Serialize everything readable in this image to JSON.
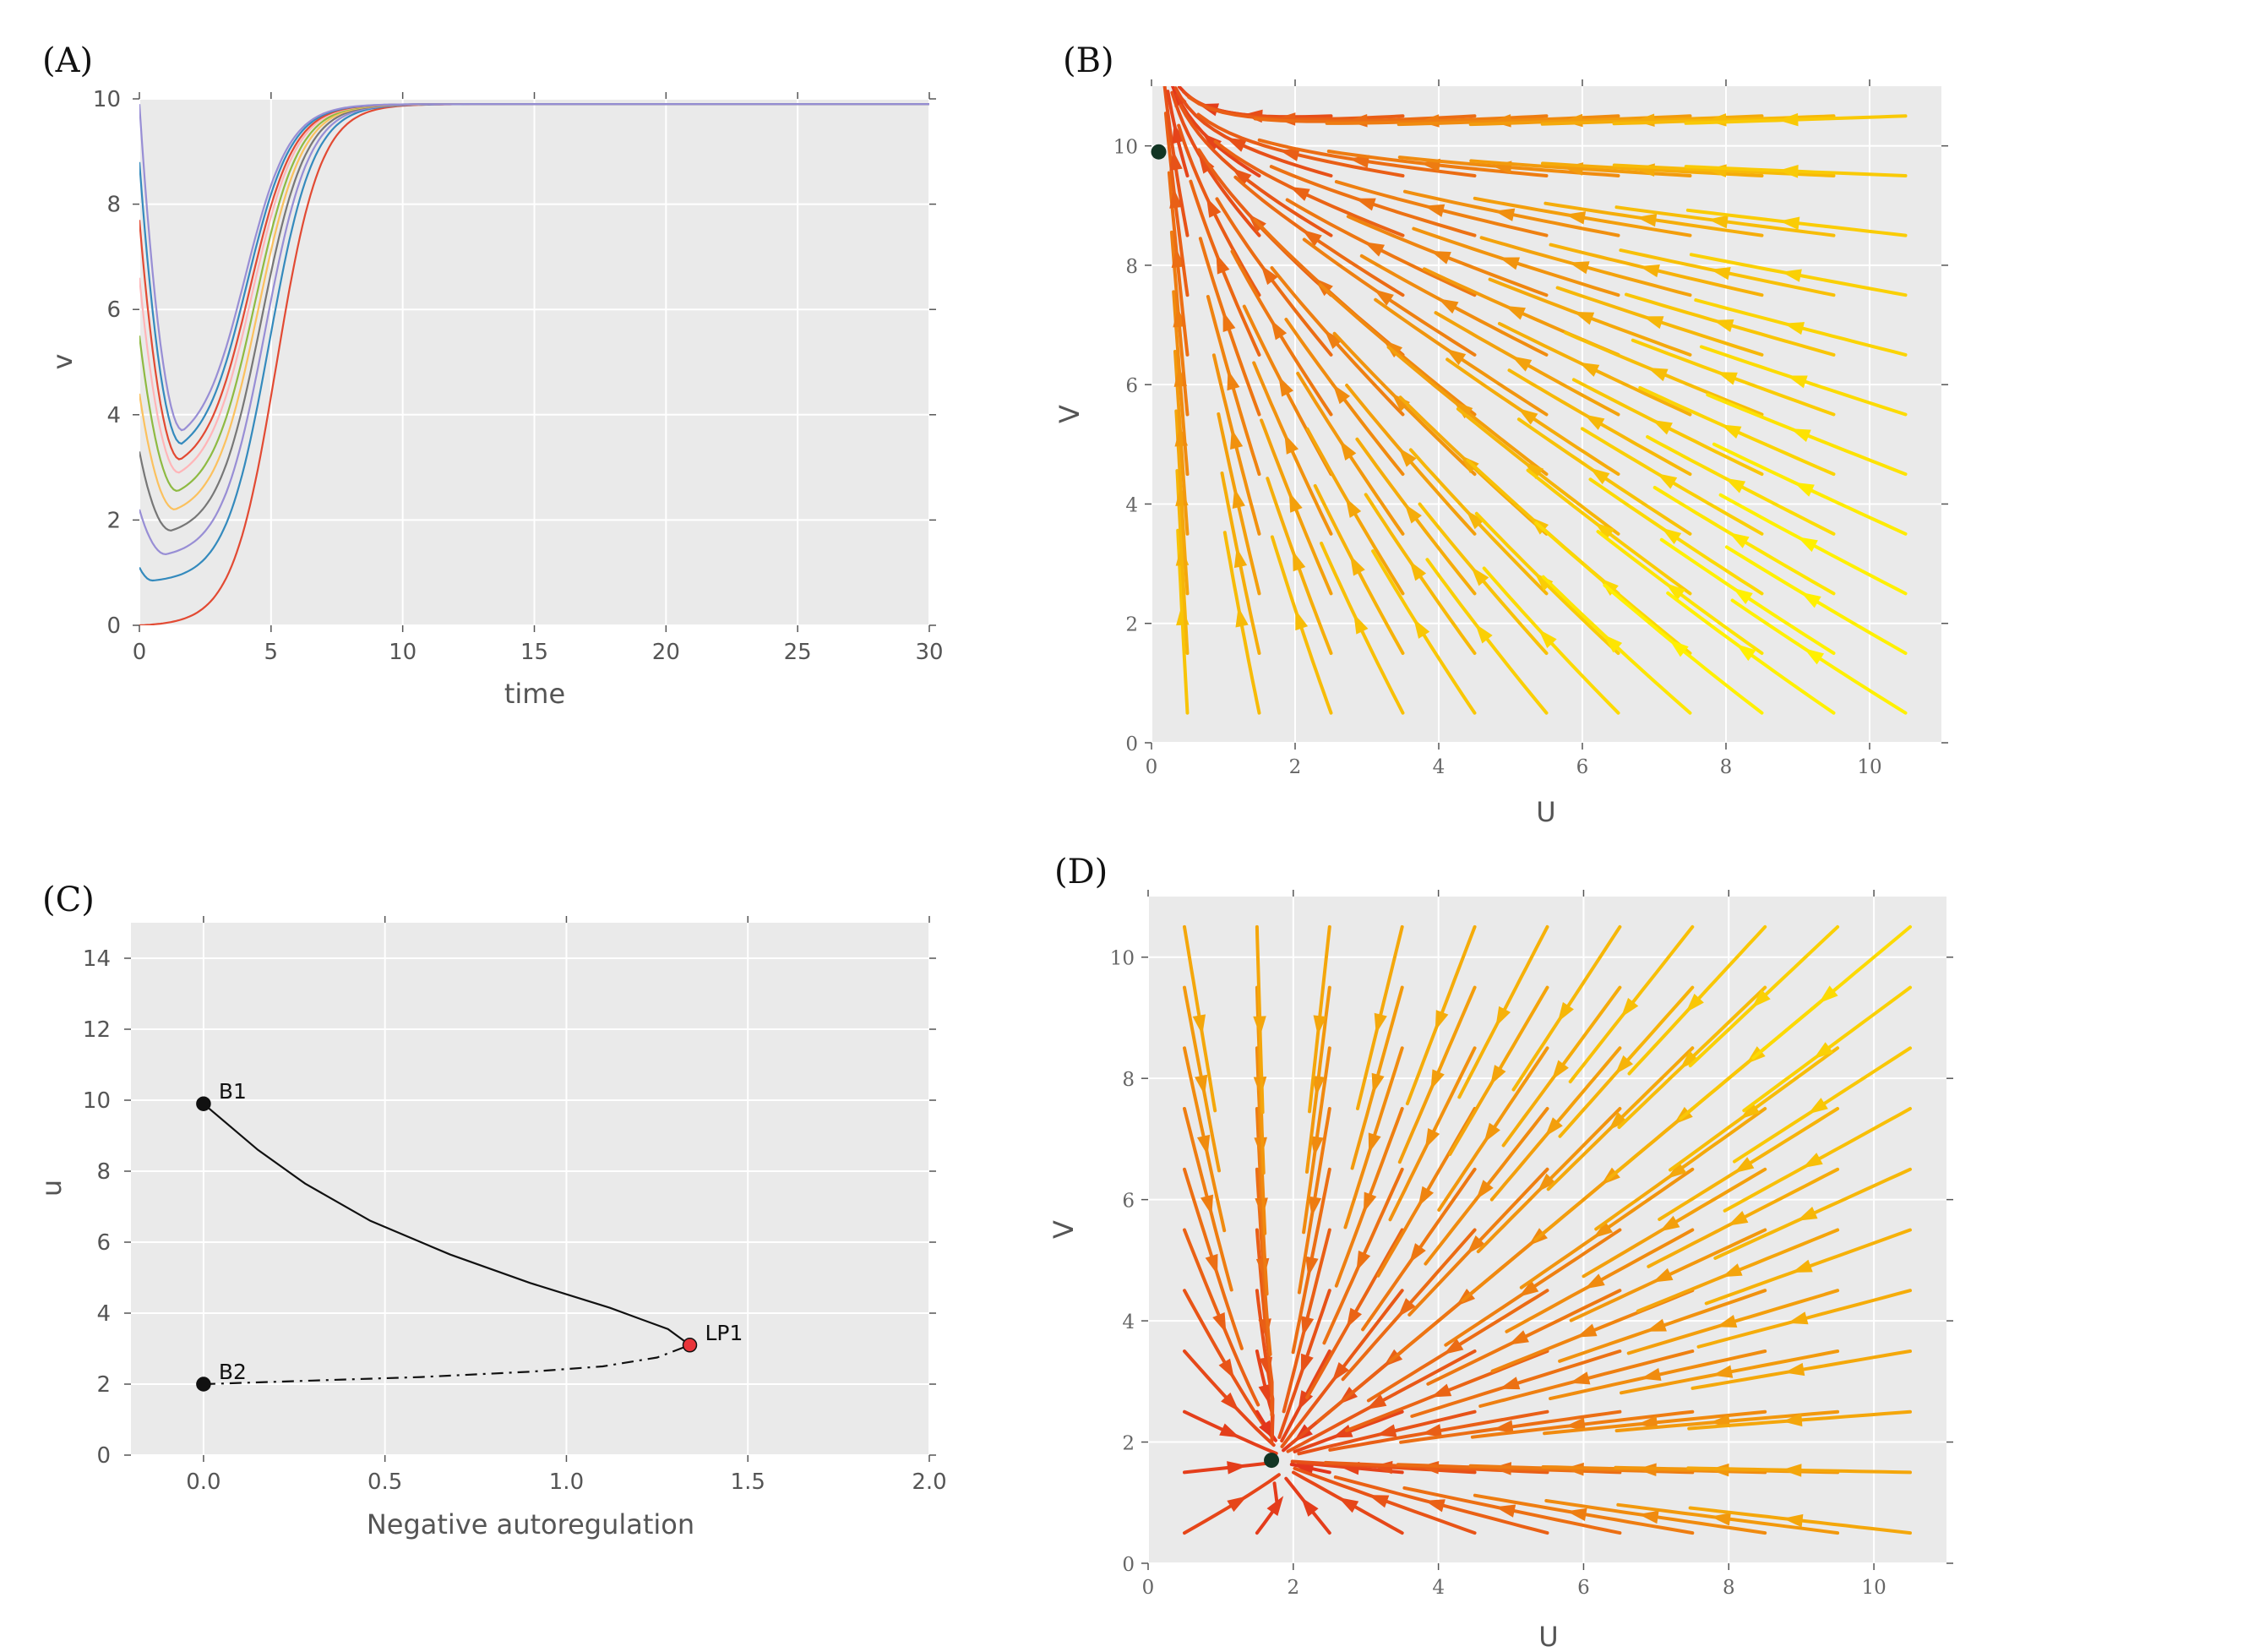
{
  "chart_data": [
    {
      "panel": "(A)",
      "type": "line",
      "xlabel": "time",
      "ylabel": "v",
      "xlim": [
        0,
        30
      ],
      "ylim": [
        0,
        10
      ],
      "xticks": [
        "0",
        "5",
        "10",
        "15",
        "20",
        "25",
        "30"
      ],
      "yticks": [
        "0",
        "2",
        "4",
        "6",
        "8",
        "10"
      ],
      "grid": true,
      "steady_state": 9.9,
      "series": [
        {
          "v0": 0.0,
          "min_v": 0.0,
          "t_min": 0.0,
          "color": "#e24a33"
        },
        {
          "v0": 1.1,
          "min_v": 0.85,
          "t_min": 0.5,
          "color": "#348abd"
        },
        {
          "v0": 2.2,
          "min_v": 1.35,
          "t_min": 1.0,
          "color": "#988ed5"
        },
        {
          "v0": 3.3,
          "min_v": 1.8,
          "t_min": 1.2,
          "color": "#777777"
        },
        {
          "v0": 4.4,
          "min_v": 2.2,
          "t_min": 1.35,
          "color": "#fbc15e"
        },
        {
          "v0": 5.5,
          "min_v": 2.55,
          "t_min": 1.45,
          "color": "#8eba42"
        },
        {
          "v0": 6.6,
          "min_v": 2.9,
          "t_min": 1.5,
          "color": "#ffb5b8"
        },
        {
          "v0": 7.7,
          "min_v": 3.15,
          "t_min": 1.55,
          "color": "#e24a33"
        },
        {
          "v0": 8.8,
          "min_v": 3.45,
          "t_min": 1.6,
          "color": "#348abd"
        },
        {
          "v0": 9.9,
          "min_v": 3.7,
          "t_min": 1.65,
          "color": "#988ed5"
        }
      ]
    },
    {
      "panel": "(B)",
      "type": "streamplot",
      "xlabel": "U",
      "ylabel": "V",
      "xlim": [
        0,
        11
      ],
      "ylim": [
        0,
        11
      ],
      "xticks": [
        "0",
        "2",
        "4",
        "6",
        "8",
        "10"
      ],
      "yticks": [
        "0",
        "2",
        "4",
        "6",
        "8",
        "10"
      ],
      "stable_point": [
        0.1,
        9.9
      ],
      "colormap": "autumn"
    },
    {
      "panel": "(C)",
      "type": "bifurcation",
      "xlabel": "Negative autoregulation",
      "ylabel": "u",
      "xlim": [
        -0.2,
        2.0
      ],
      "ylim": [
        0,
        15
      ],
      "xticks": [
        "0.0",
        "0.5",
        "1.0",
        "1.5",
        "2.0"
      ],
      "yticks": [
        "0",
        "2",
        "4",
        "6",
        "8",
        "10",
        "12",
        "14"
      ],
      "stable_branch": [
        [
          0,
          9.9
        ],
        [
          0.15,
          8.6
        ],
        [
          0.28,
          7.65
        ],
        [
          0.46,
          6.6
        ],
        [
          0.68,
          5.65
        ],
        [
          0.9,
          4.85
        ],
        [
          1.12,
          4.15
        ],
        [
          1.28,
          3.55
        ],
        [
          1.34,
          3.1
        ]
      ],
      "unstable_branch": [
        [
          0,
          2.0
        ],
        [
          0.3,
          2.1
        ],
        [
          0.6,
          2.2
        ],
        [
          0.9,
          2.35
        ],
        [
          1.1,
          2.5
        ],
        [
          1.25,
          2.75
        ],
        [
          1.34,
          3.1
        ]
      ],
      "points": [
        {
          "label": "B1",
          "x": 0.0,
          "y": 9.9,
          "color": "#111111"
        },
        {
          "label": "B2",
          "x": 0.0,
          "y": 2.0,
          "color": "#111111"
        },
        {
          "label": "LP1",
          "x": 1.34,
          "y": 3.1,
          "color": "#e8343a"
        }
      ]
    },
    {
      "panel": "(D)",
      "type": "streamplot",
      "xlabel": "U",
      "ylabel": "V",
      "xlim": [
        0,
        11
      ],
      "ylim": [
        0,
        11
      ],
      "xticks": [
        "0",
        "2",
        "4",
        "6",
        "8",
        "10"
      ],
      "yticks": [
        "0",
        "2",
        "4",
        "6",
        "8",
        "10"
      ],
      "stable_point": [
        1.7,
        1.7
      ],
      "colormap": "autumn"
    }
  ]
}
